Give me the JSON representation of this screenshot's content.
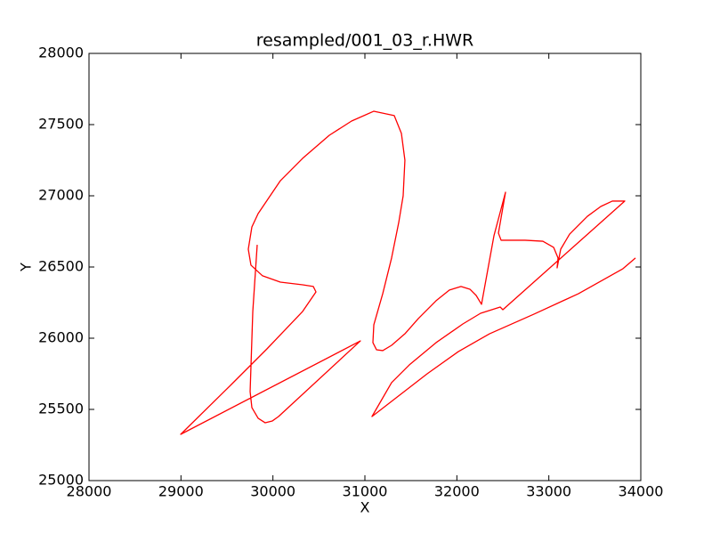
{
  "chart_data": {
    "type": "line",
    "title": "resampled/001_03_r.HWR",
    "x_label": "X",
    "y_label": "Y",
    "x": [
      29829,
      29781,
      29752,
      29771,
      29839,
      29916,
      29994,
      30061,
      30951,
      28997,
      29548,
      29935,
      30323,
      30468,
      30439,
      30323,
      30081,
      29887,
      29761,
      29732,
      29771,
      29839,
      30081,
      30323,
      30613,
      30855,
      31097,
      31319,
      31397,
      31435,
      31416,
      31368,
      31290,
      31194,
      31097,
      31087,
      31126,
      31194,
      31290,
      31435,
      31581,
      31774,
      31919,
      32045,
      32142,
      32210,
      32268,
      32403,
      32529,
      32452,
      32481,
      32742,
      32935,
      33052,
      33100,
      33090,
      33129,
      33226,
      33419,
      33565,
      33690,
      33826,
      32500,
      32471,
      32258,
      32065,
      31774,
      31484,
      31290,
      31077,
      31677,
      32016,
      32355,
      32839,
      33323,
      33806,
      33942
    ],
    "values": [
      26656,
      26188,
      25625,
      25513,
      25438,
      25406,
      25419,
      25450,
      25981,
      25325,
      25675,
      25925,
      26188,
      26325,
      26363,
      26375,
      26394,
      26438,
      26513,
      26625,
      26781,
      26875,
      27106,
      27263,
      27425,
      27525,
      27594,
      27563,
      27438,
      27250,
      27000,
      26813,
      26563,
      26313,
      26094,
      25969,
      25919,
      25913,
      25950,
      26031,
      26138,
      26263,
      26338,
      26363,
      26344,
      26300,
      26238,
      26719,
      27025,
      26738,
      26688,
      26688,
      26681,
      26638,
      26563,
      26494,
      26625,
      26731,
      26856,
      26925,
      26963,
      26963,
      26200,
      26219,
      26175,
      26100,
      25969,
      25813,
      25688,
      25450,
      25750,
      25906,
      26031,
      26169,
      26313,
      26488,
      26563
    ],
    "color": "#ff0000",
    "xlim": [
      28000,
      34000
    ],
    "xticks": [
      28000,
      29000,
      30000,
      31000,
      32000,
      33000,
      34000
    ],
    "ylim": [
      25000,
      28000
    ],
    "yticks": [
      25000,
      25500,
      26000,
      26500,
      27000,
      27500,
      28000
    ]
  }
}
